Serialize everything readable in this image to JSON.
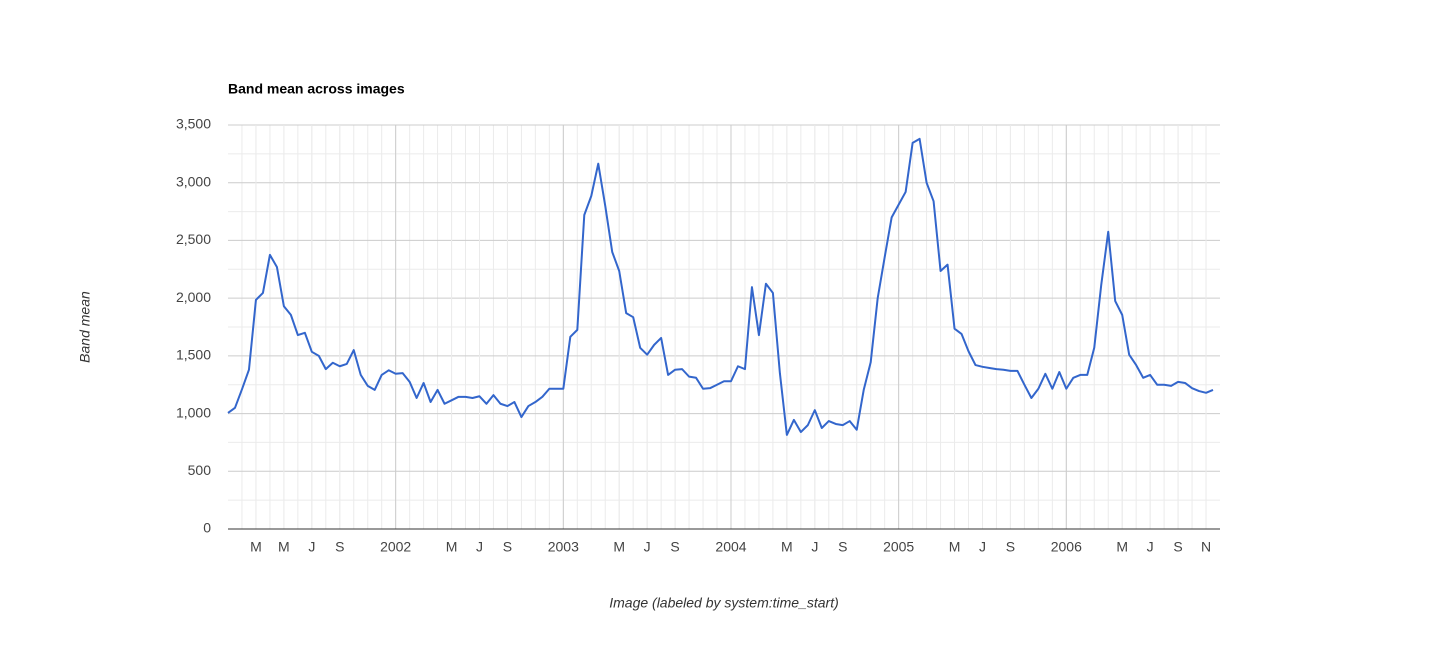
{
  "chart_data": {
    "type": "line",
    "title": "Band mean across images",
    "x_label": "Image (labeled by system:time_start)",
    "y_label": "Band mean",
    "color": "#3366cc",
    "x": [
      "2001-01",
      "2001-01",
      "2001-02",
      "2001-02",
      "2001-03",
      "2001-03",
      "2001-04",
      "2001-04",
      "2001-05",
      "2001-05",
      "2001-06",
      "2001-06",
      "2001-07",
      "2001-07",
      "2001-08",
      "2001-08",
      "2001-09",
      "2001-09",
      "2001-10",
      "2001-10",
      "2001-11",
      "2001-11",
      "2001-12",
      "2001-12",
      "2002-01",
      "2002-01",
      "2002-02",
      "2002-02",
      "2002-03",
      "2002-03",
      "2002-04",
      "2002-04",
      "2002-05",
      "2002-05",
      "2002-06",
      "2002-06",
      "2002-07",
      "2002-07",
      "2002-08",
      "2002-08",
      "2002-09",
      "2002-09",
      "2002-10",
      "2002-10",
      "2002-11",
      "2002-11",
      "2002-12",
      "2002-12",
      "2003-01",
      "2003-01",
      "2003-02",
      "2003-02",
      "2003-03",
      "2003-03",
      "2003-04",
      "2003-04",
      "2003-05",
      "2003-05",
      "2003-06",
      "2003-06",
      "2003-07",
      "2003-07",
      "2003-08",
      "2003-08",
      "2003-09",
      "2003-09",
      "2003-10",
      "2003-10",
      "2003-11",
      "2003-11",
      "2003-12",
      "2003-12",
      "2004-01",
      "2004-01",
      "2004-02",
      "2004-02",
      "2004-03",
      "2004-03",
      "2004-04",
      "2004-04",
      "2004-05",
      "2004-05",
      "2004-06",
      "2004-06",
      "2004-07",
      "2004-07",
      "2004-08",
      "2004-08",
      "2004-09",
      "2004-09",
      "2004-10",
      "2004-10",
      "2004-11",
      "2004-11",
      "2004-12",
      "2004-12",
      "2005-01",
      "2005-01",
      "2005-02",
      "2005-02",
      "2005-03",
      "2005-03",
      "2005-04",
      "2005-04",
      "2005-05",
      "2005-05",
      "2005-06",
      "2005-06",
      "2005-07",
      "2005-07",
      "2005-08",
      "2005-08",
      "2005-09",
      "2005-09",
      "2005-10",
      "2005-10",
      "2005-11",
      "2005-11",
      "2005-12",
      "2005-12",
      "2006-01",
      "2006-01",
      "2006-02",
      "2006-02",
      "2006-03",
      "2006-03",
      "2006-04",
      "2006-04",
      "2006-05",
      "2006-05",
      "2006-06",
      "2006-06",
      "2006-07",
      "2006-07",
      "2006-08",
      "2006-08",
      "2006-09",
      "2006-09",
      "2006-10",
      "2006-10",
      "2006-11",
      "2006-11"
    ],
    "values": [
      1005,
      1050,
      1210,
      1380,
      1985,
      2045,
      2375,
      2270,
      1930,
      1855,
      1680,
      1700,
      1535,
      1500,
      1385,
      1440,
      1410,
      1430,
      1550,
      1335,
      1240,
      1205,
      1335,
      1375,
      1345,
      1350,
      1275,
      1135,
      1265,
      1100,
      1205,
      1085,
      1115,
      1145,
      1145,
      1135,
      1150,
      1085,
      1160,
      1085,
      1065,
      1100,
      970,
      1065,
      1100,
      1145,
      1215,
      1215,
      1215,
      1665,
      1725,
      2720,
      2885,
      3165,
      2800,
      2400,
      2235,
      1870,
      1835,
      1570,
      1510,
      1595,
      1655,
      1335,
      1380,
      1385,
      1320,
      1310,
      1215,
      1220,
      1250,
      1280,
      1280,
      1410,
      1385,
      2095,
      1680,
      2125,
      2045,
      1350,
      815,
      945,
      840,
      900,
      1030,
      875,
      935,
      910,
      900,
      935,
      860,
      1205,
      1445,
      2000,
      2355,
      2700,
      2810,
      2920,
      3345,
      3380,
      3000,
      2840,
      2235,
      2290,
      1735,
      1690,
      1540,
      1420,
      1405,
      1395,
      1385,
      1380,
      1370,
      1370,
      1250,
      1135,
      1215,
      1345,
      1215,
      1360,
      1215,
      1310,
      1335,
      1335,
      1570,
      2115,
      2575,
      1975,
      1855,
      1510,
      1420,
      1310,
      1335,
      1250,
      1250,
      1240,
      1275,
      1265,
      1220,
      1195,
      1180,
      1205
    ],
    "xlim": [
      "2001-01",
      "2006-12"
    ],
    "xticks": [
      {
        "value": "2001-03",
        "label": "M"
      },
      {
        "value": "2001-05",
        "label": "M"
      },
      {
        "value": "2001-07",
        "label": "J"
      },
      {
        "value": "2001-09",
        "label": "S"
      },
      {
        "value": "2002-01",
        "label": "2002"
      },
      {
        "value": "2002-05",
        "label": "M"
      },
      {
        "value": "2002-07",
        "label": "J"
      },
      {
        "value": "2002-09",
        "label": "S"
      },
      {
        "value": "2003-01",
        "label": "2003"
      },
      {
        "value": "2003-05",
        "label": "M"
      },
      {
        "value": "2003-07",
        "label": "J"
      },
      {
        "value": "2003-09",
        "label": "S"
      },
      {
        "value": "2004-01",
        "label": "2004"
      },
      {
        "value": "2004-05",
        "label": "M"
      },
      {
        "value": "2004-07",
        "label": "J"
      },
      {
        "value": "2004-09",
        "label": "S"
      },
      {
        "value": "2005-01",
        "label": "2005"
      },
      {
        "value": "2005-05",
        "label": "M"
      },
      {
        "value": "2005-07",
        "label": "J"
      },
      {
        "value": "2005-09",
        "label": "S"
      },
      {
        "value": "2006-01",
        "label": "2006"
      },
      {
        "value": "2006-05",
        "label": "M"
      },
      {
        "value": "2006-07",
        "label": "J"
      },
      {
        "value": "2006-09",
        "label": "S"
      },
      {
        "value": "2006-11",
        "label": "N"
      }
    ],
    "ylim": [
      0,
      3500
    ],
    "yticks": [
      0,
      500,
      {
        "value": 1000,
        "label": "1,000"
      },
      {
        "value": 1500,
        "label": "1,500"
      },
      {
        "value": 2000,
        "label": "2,000"
      },
      {
        "value": 2500,
        "label": "2,500"
      },
      {
        "value": 3000,
        "label": "3,000"
      },
      {
        "value": 3500,
        "label": "3,500"
      }
    ],
    "grid": true
  }
}
